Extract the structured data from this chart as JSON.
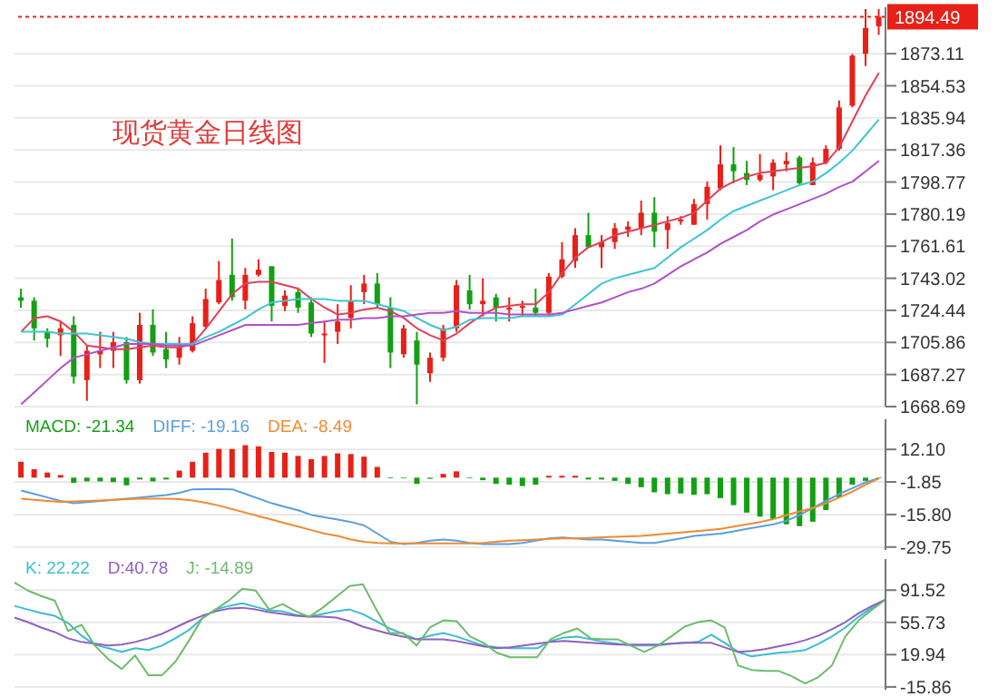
{
  "chart_data": [
    {
      "type": "candlestick",
      "title": "现货黄金日线图",
      "categories": [
        null,
        null,
        null,
        null,
        null,
        null,
        null,
        null,
        null,
        null,
        null,
        null,
        null,
        null,
        null,
        null,
        null,
        null,
        null,
        null,
        null,
        null,
        null,
        null,
        null,
        null,
        null,
        null,
        null,
        null,
        null,
        null,
        null,
        null,
        null,
        null,
        null,
        null,
        null,
        null,
        null,
        null,
        null,
        null,
        null,
        null,
        null,
        null,
        null,
        null,
        null,
        null,
        null,
        null,
        null,
        null,
        null,
        null,
        null,
        null,
        null,
        null,
        null,
        null,
        null,
        null
      ],
      "ohlc": [
        [
          1732,
          1737,
          1726,
          1730
        ],
        [
          1730,
          1732,
          1707,
          1714
        ],
        [
          1712,
          1714,
          1703,
          1708
        ],
        [
          1710,
          1718,
          1698,
          1714
        ],
        [
          1716,
          1721,
          1682,
          1686
        ],
        [
          1684,
          1704,
          1672,
          1701
        ],
        [
          1699,
          1712,
          1691,
          1701
        ],
        [
          1701,
          1712,
          1691,
          1706
        ],
        [
          1706,
          1709,
          1682,
          1684
        ],
        [
          1684,
          1723,
          1682,
          1716
        ],
        [
          1716,
          1725,
          1698,
          1700
        ],
        [
          1702,
          1712,
          1691,
          1696
        ],
        [
          1697,
          1709,
          1693,
          1703
        ],
        [
          1701,
          1721,
          1700,
          1717
        ],
        [
          1715,
          1737,
          1714,
          1731
        ],
        [
          1729,
          1753,
          1728,
          1742
        ],
        [
          1745,
          1766,
          1730,
          1732
        ],
        [
          1730,
          1749,
          1725,
          1745
        ],
        [
          1745,
          1754,
          1744,
          1748
        ],
        [
          1750,
          1750,
          1718,
          1727
        ],
        [
          1727,
          1736,
          1724,
          1733
        ],
        [
          1735,
          1737,
          1723,
          1726
        ],
        [
          1729,
          1732,
          1709,
          1711
        ],
        [
          1710,
          1718,
          1694,
          1711
        ],
        [
          1712,
          1728,
          1705,
          1718
        ],
        [
          1720,
          1739,
          1714,
          1730
        ],
        [
          1735,
          1745,
          1728,
          1740
        ],
        [
          1740,
          1746,
          1726,
          1728
        ],
        [
          1726,
          1732,
          1691,
          1700
        ],
        [
          1699,
          1716,
          1697,
          1714
        ],
        [
          1707,
          1712,
          1670,
          1693
        ],
        [
          1688,
          1700,
          1683,
          1697
        ],
        [
          1697,
          1716,
          1695,
          1714
        ],
        [
          1714,
          1742,
          1712,
          1739
        ],
        [
          1736,
          1745,
          1725,
          1728
        ],
        [
          1728,
          1743,
          1721,
          1730
        ],
        [
          1732,
          1734,
          1718,
          1726
        ],
        [
          1725,
          1732,
          1718,
          1726
        ],
        [
          1726,
          1730,
          1721,
          1727
        ],
        [
          1726,
          1737,
          1721,
          1723
        ],
        [
          1723,
          1746,
          1721,
          1744
        ],
        [
          1744,
          1764,
          1743,
          1754
        ],
        [
          1753,
          1772,
          1749,
          1768
        ],
        [
          1768,
          1781,
          1761,
          1761
        ],
        [
          1761,
          1768,
          1749,
          1764
        ],
        [
          1764,
          1775,
          1760,
          1772
        ],
        [
          1771,
          1776,
          1767,
          1773
        ],
        [
          1772,
          1788,
          1768,
          1781
        ],
        [
          1781,
          1790,
          1761,
          1770
        ],
        [
          1771,
          1779,
          1760,
          1775
        ],
        [
          1776,
          1779,
          1774,
          1777
        ],
        [
          1774,
          1789,
          1774,
          1786
        ],
        [
          1786,
          1799,
          1777,
          1796
        ],
        [
          1795,
          1820,
          1794,
          1809
        ],
        [
          1809,
          1819,
          1798,
          1805
        ],
        [
          1804,
          1811,
          1797,
          1800
        ],
        [
          1800,
          1815,
          1799,
          1803
        ],
        [
          1802,
          1812,
          1794,
          1810
        ],
        [
          1809,
          1816,
          1805,
          1811
        ],
        [
          1813,
          1814,
          1797,
          1798
        ],
        [
          1797,
          1813,
          1797,
          1810
        ],
        [
          1810,
          1820,
          1809,
          1818
        ],
        [
          1818,
          1846,
          1817,
          1842
        ],
        [
          1843,
          1873,
          1842,
          1872
        ],
        [
          1873,
          1899,
          1866,
          1888
        ],
        [
          1889,
          1899,
          1884,
          1894.49
        ]
      ],
      "colors": [
        "#12a012",
        "#12a012",
        "#12a012",
        "#e82018",
        "#12a012",
        "#e82018",
        "#e82018",
        "#e82018",
        "#12a012",
        "#e82018",
        "#12a012",
        "#12a012",
        "#e82018",
        "#e82018",
        "#e82018",
        "#e82018",
        "#12a012",
        "#e82018",
        "#e82018",
        "#12a012",
        "#e82018",
        "#12a012",
        "#12a012",
        "#e82018",
        "#e82018",
        "#e82018",
        "#e82018",
        "#12a012",
        "#12a012",
        "#e82018",
        "#12a012",
        "#e82018",
        "#e82018",
        "#e82018",
        "#12a012",
        "#e82018",
        "#12a012",
        "#e82018",
        "#e82018",
        "#12a012",
        "#e82018",
        "#e82018",
        "#e82018",
        "#12a012",
        "#e82018",
        "#e82018",
        "#e82018",
        "#e82018",
        "#12a012",
        "#e82018",
        "#e82018",
        "#e82018",
        "#e82018",
        "#e82018",
        "#12a012",
        "#12a012",
        "#e82018",
        "#e82018",
        "#e82018",
        "#12a012",
        "#e82018",
        "#e82018",
        "#e82018",
        "#e82018",
        "#e82018",
        "#e82018"
      ],
      "series": [
        {
          "type": "line",
          "color": "#e0405a",
          "values": [
            1712,
            1720,
            1721,
            1718,
            1712,
            1704,
            1703,
            1702,
            1702,
            1703,
            1704,
            1703,
            1703,
            1705,
            1714,
            1724,
            1734,
            1740,
            1741,
            1741,
            1739,
            1737,
            1731,
            1726,
            1722,
            1723,
            1725,
            1726,
            1724,
            1720,
            1714,
            1710,
            1707,
            1711,
            1717,
            1722,
            1726,
            1727,
            1728,
            1728,
            1735,
            1746,
            1755,
            1761,
            1764,
            1768,
            1770,
            1772,
            1774,
            1776,
            1778,
            1781,
            1788,
            1795,
            1799,
            1802,
            1804,
            1805,
            1806,
            1807,
            1808,
            1810,
            1819,
            1834,
            1849,
            1862
          ]
        },
        {
          "type": "line",
          "color": "#40c4d4",
          "values": [
            1712,
            1712,
            1712,
            1711,
            1711,
            1711,
            1710,
            1709,
            1708,
            1706,
            1705,
            1705,
            1705,
            1705,
            1709,
            1712,
            1716,
            1720,
            1725,
            1729,
            1730,
            1731,
            1731,
            1731,
            1730,
            1730,
            1730,
            1728,
            1726,
            1724,
            1720,
            1716,
            1713,
            1715,
            1719,
            1720,
            1720,
            1720,
            1721,
            1721,
            1721,
            1722,
            1728,
            1734,
            1740,
            1743,
            1745,
            1747,
            1749,
            1755,
            1761,
            1766,
            1771,
            1777,
            1782,
            1785,
            1788,
            1791,
            1794,
            1797,
            1799,
            1804,
            1810,
            1817,
            1826,
            1835
          ]
        },
        {
          "type": "line",
          "color": "#b050c8",
          "values": [
            1670,
            1677,
            1684,
            1691,
            1697,
            1699,
            1701,
            1703,
            1705,
            1705,
            1705,
            1704,
            1704,
            1704,
            1707,
            1710,
            1713,
            1716,
            1716,
            1716,
            1716,
            1716,
            1717,
            1718,
            1719,
            1719,
            1720,
            1720,
            1721,
            1721,
            1722,
            1723,
            1723,
            1724,
            1723,
            1723,
            1723,
            1722,
            1722,
            1722,
            1722,
            1723,
            1725,
            1727,
            1729,
            1732,
            1735,
            1737,
            1740,
            1745,
            1750,
            1754,
            1758,
            1763,
            1767,
            1771,
            1776,
            1780,
            1783,
            1786,
            1789,
            1792,
            1796,
            1799,
            1805,
            1811
          ]
        }
      ],
      "ylim": [
        1668.69,
        1900
      ],
      "yticks": [
        1668.69,
        1687.27,
        1705.86,
        1724.44,
        1743.02,
        1761.61,
        1780.19,
        1798.77,
        1817.36,
        1835.94,
        1854.53,
        1873.11
      ],
      "ref_lines": [
        {
          "axis": "y",
          "value": 1894.49,
          "label": "1894.49",
          "color": "#e82018",
          "line_style": "dotted"
        }
      ],
      "grid": "y",
      "tick_labels": "y"
    },
    {
      "type": "bar",
      "legend": "top left",
      "categories": [
        null,
        null,
        null,
        null,
        null,
        null,
        null,
        null,
        null,
        null,
        null,
        null,
        null,
        null,
        null,
        null,
        null,
        null,
        null,
        null,
        null,
        null,
        null,
        null,
        null,
        null,
        null,
        null,
        null,
        null,
        null,
        null,
        null,
        null,
        null,
        null,
        null,
        null,
        null,
        null,
        null,
        null,
        null,
        null,
        null,
        null,
        null,
        null,
        null,
        null,
        null,
        null,
        null,
        null,
        null,
        null,
        null,
        null,
        null,
        null,
        null,
        null,
        null,
        null,
        null,
        null
      ],
      "series": [
        {
          "name": "MACD: -21.34",
          "type": "bar",
          "color": "#12a012",
          "colors": [
            "#e82018",
            "#e82018",
            "#e82018",
            "#e82018",
            "#12a012",
            "#12a012",
            "#12a012",
            "#12a012",
            "#12a012",
            "#12a012",
            "#12a012",
            "#12a012",
            "#e82018",
            "#e82018",
            "#e82018",
            "#e82018",
            "#e82018",
            "#e82018",
            "#e82018",
            "#e82018",
            "#e82018",
            "#e82018",
            "#e82018",
            "#e82018",
            "#e82018",
            "#e82018",
            "#e82018",
            "#e82018",
            "#12a012",
            "#12a012",
            "#12a012",
            "#12a012",
            "#e82018",
            "#e82018",
            "#12a012",
            "#12a012",
            "#12a012",
            "#12a012",
            "#12a012",
            "#12a012",
            "#e82018",
            "#e82018",
            "#e82018",
            "#12a012",
            "#12a012",
            "#12a012",
            "#12a012",
            "#12a012",
            "#12a012",
            "#12a012",
            "#12a012",
            "#12a012",
            "#12a012",
            "#12a012",
            "#12a012",
            "#12a012",
            "#12a012",
            "#12a012",
            "#12a012",
            "#12a012",
            "#12a012",
            "#12a012",
            "#12a012",
            "#12a012",
            "#12a012",
            "#12a012"
          ],
          "values": [
            6.8,
            3.6,
            2.2,
            1.1,
            -2.2,
            -1.6,
            -1.6,
            -1.9,
            -3.3,
            -0.8,
            -1.6,
            -0.8,
            3.0,
            6.8,
            10.7,
            12.3,
            12.3,
            13.9,
            13.4,
            11.0,
            10.7,
            9.3,
            7.9,
            9.3,
            10.4,
            10.1,
            9.0,
            4.6,
            -0.3,
            -0.3,
            -2.7,
            -0.5,
            1.6,
            2.7,
            -0.3,
            -1.1,
            -2.7,
            -3.0,
            -3.6,
            -3.0,
            0.8,
            0.8,
            0.8,
            -0.8,
            -0.8,
            -1.4,
            -2.7,
            -4.1,
            -6.3,
            -7.1,
            -6.8,
            -7.4,
            -7.1,
            -8.8,
            -11.8,
            -15.0,
            -16.7,
            -17.8,
            -20.0,
            -20.8,
            -18.9,
            -13.9,
            -8.5,
            -3.0,
            -1.4,
            -0.3
          ]
        },
        {
          "name": "DIFF: -19.16",
          "type": "line",
          "color": "#5a9fe0",
          "values": [
            -5.5,
            -7,
            -8.5,
            -10,
            -11,
            -10.5,
            -10,
            -9.5,
            -9,
            -8.5,
            -8,
            -7.5,
            -6.5,
            -5,
            -4.9,
            -4.9,
            -5,
            -7,
            -9,
            -11,
            -12.5,
            -14,
            -16,
            -17,
            -18,
            -19,
            -20.5,
            -24,
            -27.5,
            -28.5,
            -28,
            -27,
            -26.5,
            -27,
            -28,
            -28.5,
            -28.5,
            -28.5,
            -28,
            -27,
            -26,
            -25.7,
            -26,
            -26.5,
            -26.5,
            -27,
            -27.5,
            -28,
            -28,
            -27,
            -26,
            -25,
            -24.5,
            -24,
            -23,
            -22,
            -21,
            -20,
            -18.5,
            -16,
            -13,
            -10,
            -7,
            -4.5,
            -2,
            -0.3
          ]
        },
        {
          "name": "DEA: -8.49",
          "type": "line",
          "color": "#f08a30",
          "values": [
            -9,
            -9.5,
            -10,
            -10.4,
            -10.2,
            -10,
            -9.8,
            -9.5,
            -9.2,
            -9,
            -9,
            -9,
            -9.2,
            -9.8,
            -10.8,
            -12,
            -13.5,
            -15,
            -16.5,
            -18,
            -19.5,
            -21,
            -22.5,
            -24,
            -25,
            -26.5,
            -27.5,
            -28,
            -28.2,
            -28.2,
            -28.2,
            -28.2,
            -28.2,
            -28.2,
            -28.2,
            -28,
            -27.5,
            -27,
            -26.8,
            -26.5,
            -26.2,
            -26,
            -26,
            -25.8,
            -25.6,
            -25.4,
            -25.2,
            -25,
            -24.5,
            -24,
            -23.5,
            -23,
            -22.5,
            -22,
            -21,
            -20,
            -19,
            -17.8,
            -16,
            -14.5,
            -13,
            -11,
            -8.5,
            -6,
            -3,
            -0.3
          ]
        }
      ],
      "ylim": [
        -31,
        25
      ],
      "yticks": [
        {
          "value": -29.75,
          "label": "-29.75"
        },
        {
          "value": -15.8,
          "label": "-15.80"
        },
        {
          "value": -1.85,
          "label": "-1.85"
        },
        {
          "value": 12.1,
          "label": "12.10"
        }
      ],
      "grid": "y",
      "tick_labels": "y"
    },
    {
      "type": "line",
      "legend": "top left",
      "categories": [
        null,
        null,
        null,
        null,
        null,
        null,
        null,
        null,
        null,
        null,
        null,
        null,
        null,
        null,
        null,
        null,
        null,
        null,
        null,
        null,
        null,
        null,
        null,
        null,
        null,
        null,
        null,
        null,
        null,
        null,
        null,
        null,
        null,
        null,
        null,
        null,
        null,
        null,
        null,
        null,
        null,
        null,
        null,
        null,
        null,
        null,
        null,
        null,
        null,
        null,
        null,
        null,
        null,
        null,
        null,
        null,
        null,
        null,
        null,
        null,
        null,
        null,
        null,
        null,
        null,
        null
      ],
      "series": [
        {
          "name": "K: 22.22",
          "color": "#3cbcd0",
          "values": [
            74,
            70,
            66,
            63,
            55,
            41,
            31,
            27,
            23,
            27,
            25,
            30,
            38,
            47,
            60,
            70,
            74,
            77,
            73,
            69,
            68,
            64,
            62,
            65,
            68,
            70,
            65,
            57,
            49,
            43,
            37,
            41,
            44,
            40,
            35,
            30,
            28,
            27,
            27,
            27,
            35,
            39,
            40,
            37,
            34,
            32,
            30,
            30,
            30,
            32,
            33,
            34,
            42,
            33,
            23,
            18,
            20,
            22,
            23,
            25,
            32,
            40,
            50,
            62,
            72,
            81
          ]
        },
        {
          "name": "D:40.78",
          "color": "#9060c0",
          "values": [
            61,
            56,
            50,
            45,
            38,
            34,
            32,
            30,
            31,
            34,
            38,
            43,
            50,
            57,
            63,
            68,
            71,
            72,
            70,
            67,
            65,
            63,
            62,
            62,
            61,
            57,
            51,
            47,
            43,
            40,
            37,
            37,
            37,
            35,
            32,
            29,
            27,
            28,
            30,
            32,
            34,
            35,
            34,
            33,
            32,
            31,
            31,
            31,
            31,
            32,
            33,
            33,
            33,
            28,
            23,
            24,
            26,
            29,
            32,
            36,
            41,
            48,
            56,
            66,
            74,
            81
          ]
        },
        {
          "name": "J: -14.89",
          "color": "#6cbc6c",
          "values": [
            100,
            91,
            85,
            80,
            46,
            53,
            30,
            15,
            4,
            19,
            -3,
            -3,
            12,
            35,
            60,
            70,
            80,
            93,
            91,
            70,
            76,
            68,
            62,
            72,
            84,
            96,
            98,
            70,
            44,
            44,
            30,
            50,
            58,
            57,
            40,
            33,
            22,
            17,
            17,
            17,
            37,
            44,
            49,
            38,
            37,
            37,
            30,
            23,
            30,
            40,
            51,
            56,
            58,
            50,
            8,
            3,
            2,
            2,
            -4,
            -12,
            -5,
            8,
            40,
            58,
            70,
            81
          ]
        }
      ],
      "ylim": [
        -19,
        126
      ],
      "yticks": [
        {
          "value": -15.86,
          "label": "-15.86"
        },
        19.94,
        55.73,
        91.52
      ],
      "grid": "y",
      "tick_labels": "y"
    }
  ]
}
